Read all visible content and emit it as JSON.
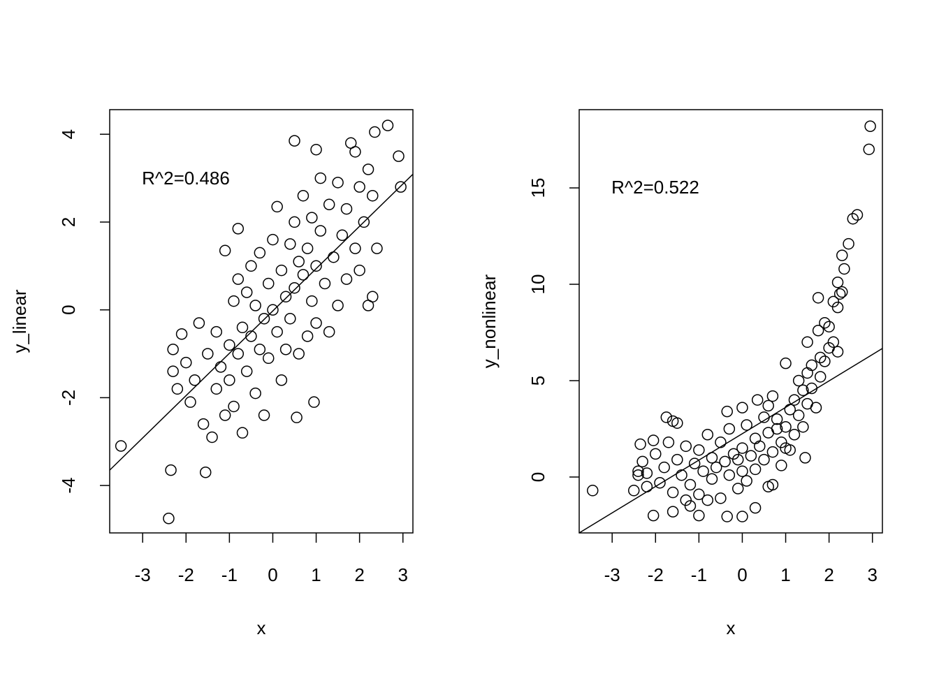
{
  "chart_data": [
    {
      "type": "scatter",
      "xlabel": "x",
      "ylabel": "y_linear",
      "annotation": "R^2=0.486",
      "xlim": [
        -3.76,
        3.23
      ],
      "ylim": [
        -5.08,
        4.56
      ],
      "xticks": [
        -3,
        -2,
        -1,
        0,
        1,
        2,
        3
      ],
      "yticks": [
        -4,
        -2,
        0,
        2,
        4
      ],
      "series": [
        {
          "color": "#000000",
          "x": [
            -3.5,
            -2.4,
            -2.35,
            2.65,
            2.9,
            2.95,
            0.5,
            1.0,
            0.95,
            0.55,
            -1.55,
            -0.8,
            -1.1,
            2.35,
            1.9,
            2.3,
            2.4,
            -2.3,
            -2.1,
            -2.3,
            -2.2,
            -2.0,
            -1.9,
            -1.8,
            -1.7,
            -1.6,
            -1.5,
            -1.4,
            -1.3,
            -1.3,
            -1.2,
            -1.1,
            -1.0,
            -1.0,
            -0.9,
            -0.9,
            -0.8,
            -0.8,
            -0.7,
            -0.7,
            -0.6,
            -0.6,
            -0.5,
            -0.5,
            -0.4,
            -0.4,
            -0.3,
            -0.3,
            -0.2,
            -0.2,
            -0.1,
            -0.1,
            0.0,
            0.0,
            0.1,
            0.1,
            0.2,
            0.2,
            0.3,
            0.3,
            0.4,
            0.4,
            0.5,
            0.5,
            0.6,
            0.6,
            0.7,
            0.7,
            0.8,
            0.8,
            0.9,
            0.9,
            1.0,
            1.0,
            1.1,
            1.1,
            1.2,
            1.3,
            1.3,
            1.4,
            1.5,
            1.5,
            1.6,
            1.7,
            1.7,
            1.8,
            1.9,
            2.0,
            2.0,
            2.1,
            2.2,
            2.2,
            2.3
          ],
          "values": [
            -3.1,
            -4.75,
            -3.65,
            4.2,
            3.5,
            2.8,
            3.85,
            3.65,
            -2.1,
            -2.45,
            -3.7,
            1.85,
            1.35,
            4.05,
            3.6,
            0.3,
            1.4,
            -0.9,
            -0.55,
            -1.4,
            -1.8,
            -1.2,
            -2.1,
            -1.6,
            -0.3,
            -2.6,
            -1.0,
            -2.9,
            -0.5,
            -1.8,
            -1.3,
            -2.4,
            -0.8,
            -1.6,
            0.2,
            -2.2,
            -1.0,
            0.7,
            -0.4,
            -2.8,
            -1.4,
            0.4,
            1.0,
            -0.6,
            -1.9,
            0.1,
            -0.9,
            1.3,
            -0.2,
            -2.4,
            0.6,
            -1.1,
            0.0,
            1.6,
            -0.5,
            2.35,
            0.9,
            -1.6,
            0.3,
            -0.9,
            1.5,
            -0.2,
            2.0,
            0.5,
            -1.0,
            1.1,
            0.8,
            2.6,
            -0.6,
            1.4,
            0.2,
            2.1,
            1.0,
            -0.3,
            1.8,
            3.0,
            0.6,
            2.4,
            -0.5,
            1.2,
            2.9,
            0.1,
            1.7,
            0.7,
            2.3,
            3.8,
            1.4,
            2.8,
            0.9,
            2.0,
            3.2,
            0.1,
            2.6
          ]
        }
      ],
      "fit_line": {
        "x": [
          -3.76,
          3.23
        ],
        "values": [
          -3.65,
          3.09
        ]
      }
    },
    {
      "type": "scatter",
      "xlabel": "x",
      "ylabel": "y_nonlinear",
      "annotation": "R^2=0.522",
      "xlim": [
        -3.76,
        3.23
      ],
      "ylim": [
        -2.9,
        19.06
      ],
      "xticks": [
        -3,
        -2,
        -1,
        0,
        1,
        2,
        3
      ],
      "yticks": [
        0,
        5,
        10,
        15
      ],
      "series": [
        {
          "color": "#000000",
          "x": [
            -3.45,
            2.95,
            2.92,
            2.65,
            2.55,
            2.45,
            2.3,
            2.35,
            2.2,
            2.25,
            2.3,
            2.1,
            1.75,
            2.2,
            1.9,
            2.0,
            1.75,
            2.1,
            1.5,
            2.0,
            2.2,
            1.8,
            1.6,
            1.0,
            1.5,
            1.3,
            1.4,
            1.2,
            0.7,
            0.35,
            0.6,
            0.0,
            -0.35,
            -1.75,
            -1.5,
            -1.6,
            -2.35,
            -2.05,
            -2.4,
            -2.2,
            -2.05,
            -1.0,
            -0.35,
            0.0,
            0.3,
            1.45,
            0.6,
            -1.2,
            -0.8,
            -1.6,
            1.0,
            0.8,
            -2.3,
            -2.2,
            -2.0,
            -1.9,
            -1.8,
            -1.7,
            -1.6,
            -1.5,
            -1.4,
            -1.3,
            -1.2,
            -1.1,
            -1.0,
            -1.0,
            -0.9,
            -0.8,
            -0.7,
            -0.7,
            -0.6,
            -0.5,
            -0.5,
            -0.4,
            -0.3,
            -0.3,
            -0.2,
            -0.1,
            -0.1,
            0.0,
            0.0,
            0.1,
            0.1,
            0.2,
            0.3,
            0.3,
            0.4,
            0.5,
            0.5,
            0.6,
            0.7,
            0.8,
            0.9,
            0.9,
            1.0,
            1.1,
            1.1,
            1.2,
            1.3,
            1.4,
            1.5,
            1.6,
            1.7,
            1.8,
            1.9,
            -2.5,
            -2.4,
            0.7,
            -1.3
          ],
          "values": [
            -0.7,
            18.2,
            17.0,
            13.6,
            13.4,
            12.1,
            11.5,
            10.8,
            10.1,
            9.5,
            9.6,
            9.1,
            9.3,
            8.8,
            8.0,
            7.8,
            7.6,
            7.0,
            7.0,
            6.7,
            6.5,
            6.2,
            5.8,
            5.9,
            5.4,
            5.0,
            4.5,
            4.0,
            4.2,
            4.0,
            3.7,
            3.6,
            3.4,
            3.1,
            2.8,
            2.9,
            1.7,
            1.9,
            0.3,
            -0.5,
            -2.0,
            -2.0,
            -2.05,
            -2.05,
            -1.6,
            1.0,
            -0.5,
            -1.5,
            -1.2,
            -1.8,
            1.5,
            2.5,
            0.8,
            0.2,
            1.2,
            -0.3,
            0.5,
            1.8,
            -0.8,
            0.9,
            0.1,
            1.6,
            -0.4,
            0.7,
            1.4,
            -0.9,
            0.3,
            2.2,
            -0.1,
            1.0,
            0.5,
            -1.1,
            1.8,
            0.8,
            0.1,
            2.5,
            1.2,
            -0.6,
            0.9,
            1.5,
            0.3,
            2.7,
            -0.2,
            1.1,
            2.0,
            0.4,
            1.6,
            3.1,
            0.9,
            2.3,
            1.3,
            3.0,
            1.8,
            0.6,
            2.6,
            3.5,
            1.4,
            2.2,
            3.2,
            2.6,
            3.8,
            4.6,
            3.6,
            5.2,
            6.0,
            -0.7,
            0.1,
            -0.4,
            -1.2
          ]
        }
      ],
      "fit_line": {
        "x": [
          -3.76,
          3.23
        ],
        "values": [
          -2.9,
          6.67
        ]
      }
    }
  ]
}
